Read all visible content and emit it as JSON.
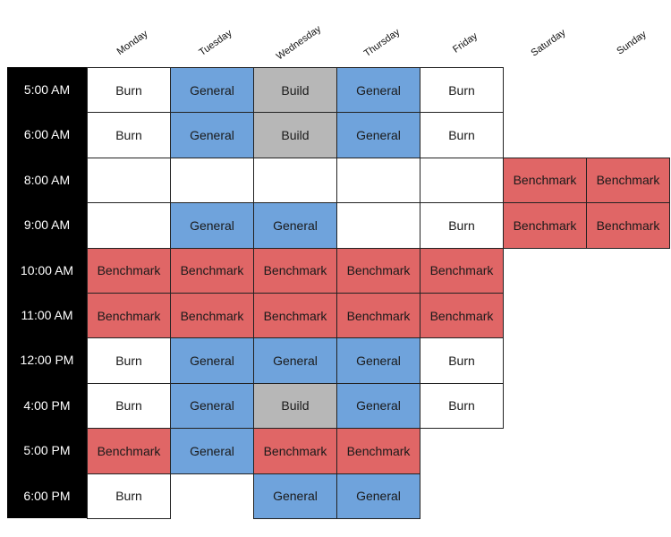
{
  "days": [
    "Monday",
    "Tuesday",
    "Wednesday",
    "Thursday",
    "Friday",
    "Saturday",
    "Sunday"
  ],
  "times": [
    "5:00 AM",
    "6:00 AM",
    "8:00 AM",
    "9:00 AM",
    "10:00 AM",
    "11:00 AM",
    "12:00 PM",
    "4:00 PM",
    "5:00 PM",
    "6:00 PM"
  ],
  "colors": {
    "Burn": "#ffffff",
    "General": "#6fa3dc",
    "Build": "#b7b7b7",
    "Benchmark": "#e06666",
    "": "#ffffff",
    "time_column": "#000000"
  },
  "grid": [
    [
      "Burn",
      "General",
      "Build",
      "General",
      "Burn",
      null,
      null
    ],
    [
      "Burn",
      "General",
      "Build",
      "General",
      "Burn",
      null,
      null
    ],
    [
      "",
      "",
      "",
      "",
      "",
      "Benchmark",
      "Benchmark"
    ],
    [
      "",
      "General",
      "General",
      "",
      "Burn",
      "Benchmark",
      "Benchmark"
    ],
    [
      "Benchmark",
      "Benchmark",
      "Benchmark",
      "Benchmark",
      "Benchmark",
      null,
      null
    ],
    [
      "Benchmark",
      "Benchmark",
      "Benchmark",
      "Benchmark",
      "Benchmark",
      null,
      null
    ],
    [
      "Burn",
      "General",
      "General",
      "General",
      "Burn",
      null,
      null
    ],
    [
      "Burn",
      "General",
      "Build",
      "General",
      "Burn",
      null,
      null
    ],
    [
      "Benchmark",
      "General",
      "Benchmark",
      "Benchmark",
      null,
      null,
      null
    ],
    [
      "Burn",
      null,
      "General",
      "General",
      null,
      null,
      null
    ]
  ]
}
